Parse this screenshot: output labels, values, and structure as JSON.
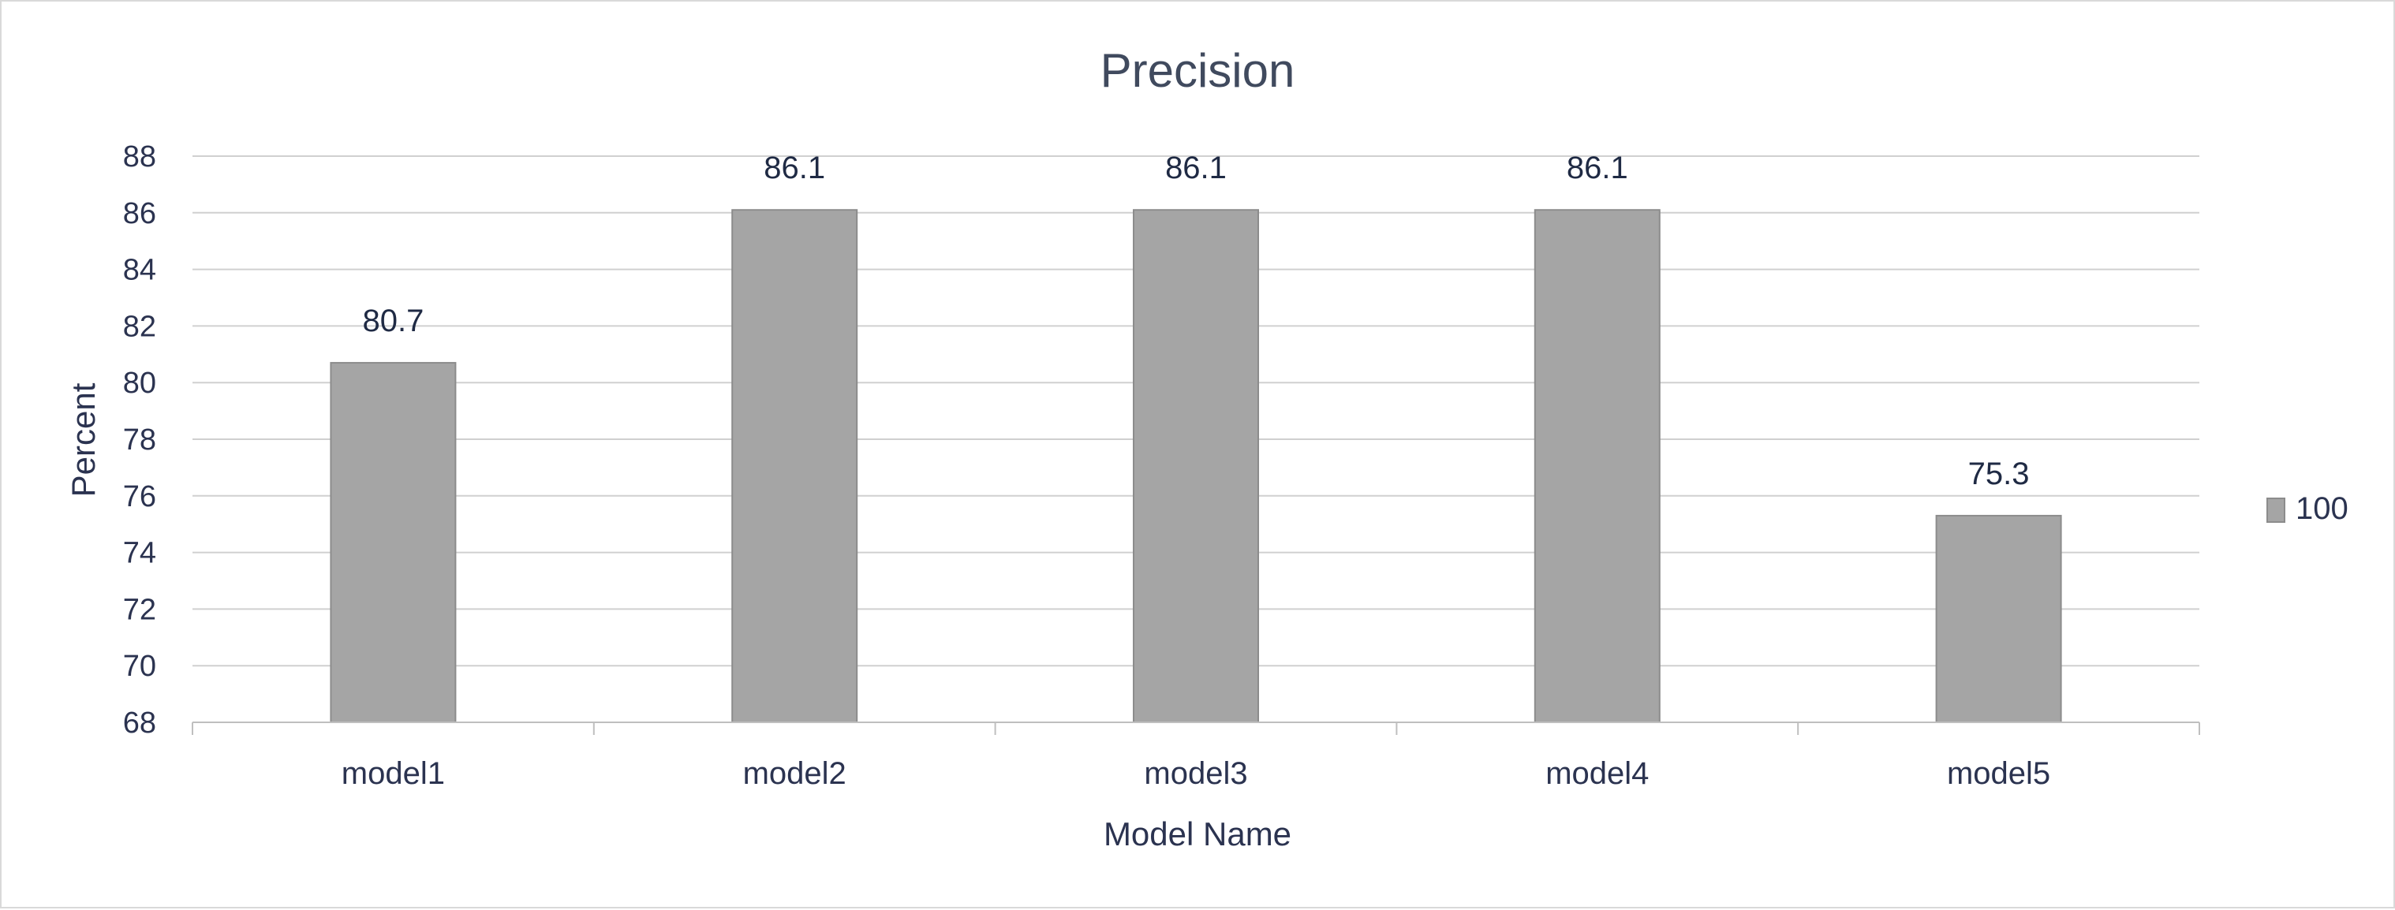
{
  "chart_data": {
    "type": "bar",
    "title": "Precision",
    "xlabel": "Model Name",
    "ylabel": "Percent",
    "categories": [
      "model1",
      "model2",
      "model3",
      "model4",
      "model5"
    ],
    "series": [
      {
        "name": "100",
        "values": [
          80.7,
          86.1,
          86.1,
          86.1,
          75.3
        ]
      }
    ],
    "ylim": [
      68,
      88
    ],
    "yticks": [
      68,
      70,
      72,
      74,
      76,
      78,
      80,
      82,
      84,
      86,
      88
    ],
    "data_labels": [
      "80.7",
      "86.1",
      "86.1",
      "86.1",
      "75.3"
    ],
    "grid": true,
    "legend": "right",
    "colors": {
      "bar": "#a5a5a5",
      "bar_edge": "#8c8c8c",
      "grid": "#d0d0d0",
      "axis": "#bfbfbf"
    }
  }
}
